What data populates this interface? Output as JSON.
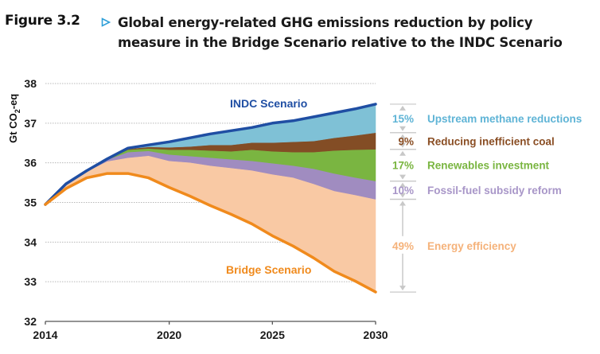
{
  "figure": {
    "number_label": "Figure 3.2",
    "title_line1": "Global energy-related GHG emissions reduction by policy",
    "title_line2": "measure in the Bridge Scenario relative to the INDC Scenario",
    "accent_color": "#2e9fd8"
  },
  "chart_data": {
    "type": "area",
    "title": "Global energy-related GHG emissions reduction by policy measure in the Bridge Scenario relative to the INDC Scenario",
    "xlabel": "",
    "ylabel": "Gt CO2-eq",
    "ylabel_main": "Gt CO",
    "ylabel_sub": "2",
    "ylabel_suffix": "-eq",
    "xlim": [
      2014,
      2030
    ],
    "ylim": [
      32,
      38
    ],
    "grid": true,
    "x_ticks": [
      2014,
      2020,
      2025,
      2030
    ],
    "x_tick_labels": [
      "2014",
      "2020",
      "2025",
      "2030"
    ],
    "y_ticks": [
      32,
      33,
      34,
      35,
      36,
      37,
      38
    ],
    "y_tick_labels": [
      "32",
      "33",
      "34",
      "35",
      "36",
      "37",
      "38"
    ],
    "x": [
      2014,
      2015,
      2016,
      2017,
      2018,
      2019,
      2020,
      2021,
      2022,
      2023,
      2024,
      2025,
      2026,
      2027,
      2028,
      2029,
      2030
    ],
    "lines": [
      {
        "name": "INDC Scenario",
        "color": "#1f4ea3",
        "values": [
          34.95,
          35.47,
          35.8,
          36.1,
          36.37,
          36.45,
          36.53,
          36.63,
          36.73,
          36.81,
          36.89,
          37.0,
          37.06,
          37.16,
          37.26,
          37.36,
          37.48
        ]
      },
      {
        "name": "Bridge Scenario",
        "color": "#f08a1c",
        "values": [
          34.95,
          35.35,
          35.62,
          35.73,
          35.73,
          35.62,
          35.38,
          35.16,
          34.92,
          34.7,
          34.46,
          34.16,
          33.9,
          33.6,
          33.26,
          33.02,
          32.74
        ]
      }
    ],
    "band_boundaries_note": "Stacked bands between Bridge (bottom) and INDC (top); each band lies between consecutive boundary series.",
    "boundaries": {
      "efficiency_top": [
        34.95,
        35.45,
        35.78,
        36.04,
        36.13,
        36.18,
        36.05,
        36.01,
        35.93,
        35.87,
        35.81,
        35.71,
        35.63,
        35.47,
        35.29,
        35.19,
        35.08
      ],
      "subsidy_top": [
        34.95,
        35.47,
        35.8,
        36.08,
        36.27,
        36.3,
        36.21,
        36.17,
        36.13,
        36.09,
        36.05,
        35.99,
        35.93,
        35.85,
        35.73,
        35.63,
        35.54
      ],
      "renewables_top": [
        34.95,
        35.47,
        35.8,
        36.1,
        36.33,
        36.36,
        36.33,
        36.33,
        36.31,
        36.29,
        36.33,
        36.29,
        36.27,
        36.27,
        36.31,
        36.33,
        36.34
      ],
      "coal_top": [
        34.95,
        35.47,
        35.8,
        36.1,
        36.35,
        36.4,
        36.39,
        36.41,
        36.45,
        36.45,
        36.51,
        36.51,
        36.53,
        36.55,
        36.63,
        36.69,
        36.76
      ]
    },
    "series": [
      {
        "name": "Energy efficiency",
        "share": "49%",
        "color": "#f9c9a4",
        "text_color": "#f5b27a",
        "lower": "bridge",
        "upper": "efficiency_top"
      },
      {
        "name": "Fossil-fuel subsidy reform",
        "share": "10%",
        "color": "#a08cc0",
        "text_color": "#a896c8",
        "lower": "efficiency_top",
        "upper": "subsidy_top"
      },
      {
        "name": "Renewables investment",
        "share": "17%",
        "color": "#7ab541",
        "text_color": "#7ab541",
        "lower": "subsidy_top",
        "upper": "renewables_top"
      },
      {
        "name": "Reducing inefficient coal",
        "share": "9%",
        "color": "#834d25",
        "text_color": "#8a4e24",
        "lower": "renewables_top",
        "upper": "coal_top"
      },
      {
        "name": "Upstream methane reductions",
        "share": "15%",
        "color": "#7fc1d6",
        "text_color": "#5fb4d6",
        "lower": "coal_top",
        "upper": "indc"
      }
    ],
    "legend_placement": "right",
    "annotations": [
      {
        "text": "INDC Scenario",
        "color": "#1f4ea3"
      },
      {
        "text": "Bridge Scenario",
        "color": "#f08a1c"
      }
    ]
  }
}
